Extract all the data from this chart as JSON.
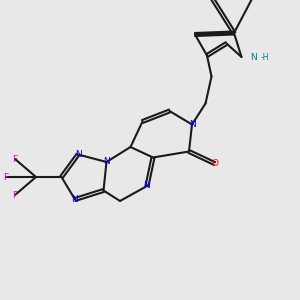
{
  "background_color": "#e8e8e8",
  "bond_color": "#1a1a1a",
  "N_color": "#0000ff",
  "O_color": "#ff0000",
  "F_color": "#cc00cc",
  "NH_color": "#008080",
  "lw": 1.5,
  "doff": 0.05
}
